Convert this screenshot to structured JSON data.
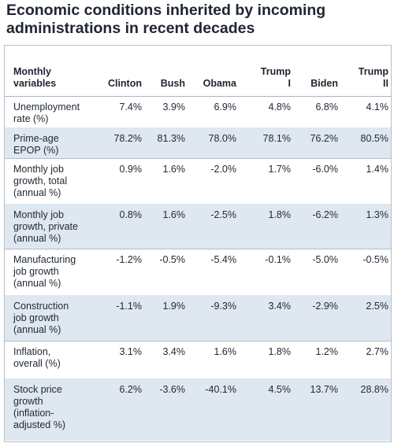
{
  "title_lines": [
    "Economic conditions inherited by incoming",
    "administrations in recent decades"
  ],
  "chart_data": {
    "type": "table",
    "row_header_label": "Monthly variables",
    "columns": [
      "Clinton",
      "Bush",
      "Obama",
      "Trump I",
      "Biden",
      "Trump II"
    ],
    "column_lines": [
      [
        "Clinton"
      ],
      [
        "Bush"
      ],
      [
        "Obama"
      ],
      [
        "Trump",
        "I"
      ],
      [
        "Biden"
      ],
      [
        "Trump",
        "II"
      ]
    ],
    "rows": [
      {
        "label": "Unemployment rate (%)",
        "values": [
          "7.4%",
          "3.9%",
          "6.9%",
          "4.8%",
          "6.8%",
          "4.1%"
        ]
      },
      {
        "label": "Prime-age EPOP (%)",
        "values": [
          "78.2%",
          "81.3%",
          "78.0%",
          "78.1%",
          "76.2%",
          "80.5%"
        ]
      },
      {
        "label": "Monthly job growth, total (annual %)",
        "values": [
          "0.9%",
          "1.6%",
          "-2.0%",
          "1.7%",
          "-6.0%",
          "1.4%"
        ]
      },
      {
        "label": "Monthly job growth, private (annual %)",
        "values": [
          "0.8%",
          "1.6%",
          "-2.5%",
          "1.8%",
          "-6.2%",
          "1.3%"
        ]
      },
      {
        "label": "Manufacturing job growth (annual %)",
        "values": [
          "-1.2%",
          "-0.5%",
          "-5.4%",
          "-0.1%",
          "-5.0%",
          "-0.5%"
        ]
      },
      {
        "label": "Construction job growth (annual %)",
        "values": [
          "-1.1%",
          "1.9%",
          "-9.3%",
          "3.4%",
          "-2.9%",
          "2.5%"
        ]
      },
      {
        "label": "Inflation, overall (%)",
        "values": [
          "3.1%",
          "3.4%",
          "1.6%",
          "1.8%",
          "1.2%",
          "2.7%"
        ]
      },
      {
        "label": "Stock price growth (inflation-adjusted %)",
        "values": [
          "6.2%",
          "-3.6%",
          "-40.1%",
          "4.5%",
          "13.7%",
          "28.8%"
        ]
      }
    ],
    "row_label_lines": [
      [
        "Unemployment",
        "rate (%)"
      ],
      [
        "Prime-age",
        "EPOP (%)"
      ],
      [
        "Monthly job",
        "growth, total",
        "(annual %)"
      ],
      [
        "Monthly job",
        "growth, private",
        "(annual %)"
      ],
      [
        "Manufacturing",
        "job growth",
        "(annual %)"
      ],
      [
        "Construction",
        "job growth",
        "(annual %)"
      ],
      [
        "Inflation,",
        "overall (%)"
      ],
      [
        "Stock price",
        "growth",
        "(inflation-",
        "adjusted %)"
      ]
    ],
    "row_header_lines": [
      "Monthly",
      "variables"
    ],
    "shaded_rows": [
      1,
      3,
      5,
      7
    ],
    "row_shade_color": "#dfe7f1",
    "grid": true
  }
}
